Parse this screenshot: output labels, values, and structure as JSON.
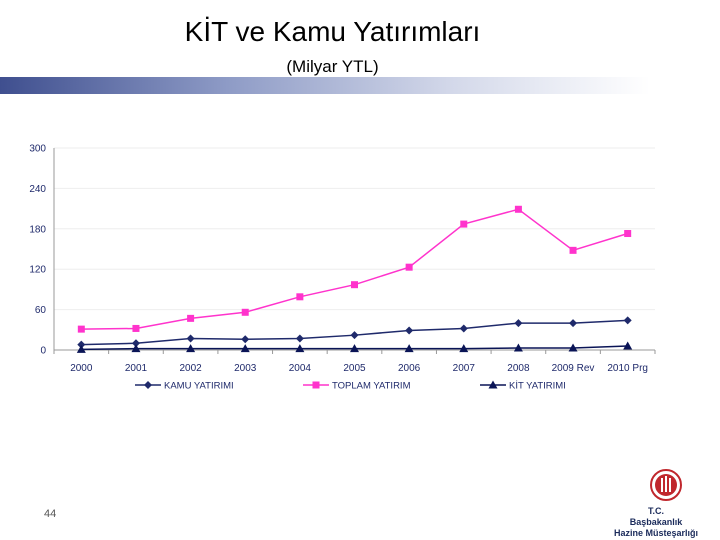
{
  "slide": {
    "title": "KİT ve Kamu Yatırımları",
    "subtitle": "(Milyar YTL)",
    "page_number": "44",
    "org_lines": [
      "T.C.",
      "Başbakanlık",
      "Hazine Müsteşarlığı"
    ]
  },
  "colors": {
    "kamu": "#1f2a6b",
    "toplam": "#ff33cc",
    "kit": "#0a1456",
    "grid": "#eeeeee",
    "axis_text": "#1f2a6b",
    "logo": "#c0272d"
  },
  "chart_data": {
    "type": "line",
    "categories": [
      "2000",
      "2001",
      "2002",
      "2003",
      "2004",
      "2005",
      "2006",
      "2007",
      "2008",
      "2009 Rev",
      "2010 Prg"
    ],
    "ylim": [
      0,
      300
    ],
    "yticks": [
      "300",
      "240",
      "180",
      "120",
      "60",
      "0"
    ],
    "grid": true,
    "legend_position": "bottom",
    "series": [
      {
        "name": "KAMU YATIRIMI",
        "marker": "diamond",
        "values": [
          8,
          10,
          17,
          16,
          17,
          22,
          29,
          32,
          40,
          40,
          44
        ]
      },
      {
        "name": "TOPLAM YATIRIM",
        "marker": "square",
        "values": [
          31,
          32,
          47,
          56,
          79,
          97,
          123,
          187,
          209,
          148,
          173
        ]
      },
      {
        "name": "KİT YATIRIMI",
        "marker": "triangle",
        "values": [
          1,
          2,
          2,
          2,
          2,
          2,
          2,
          2,
          3,
          3,
          6
        ]
      }
    ]
  }
}
